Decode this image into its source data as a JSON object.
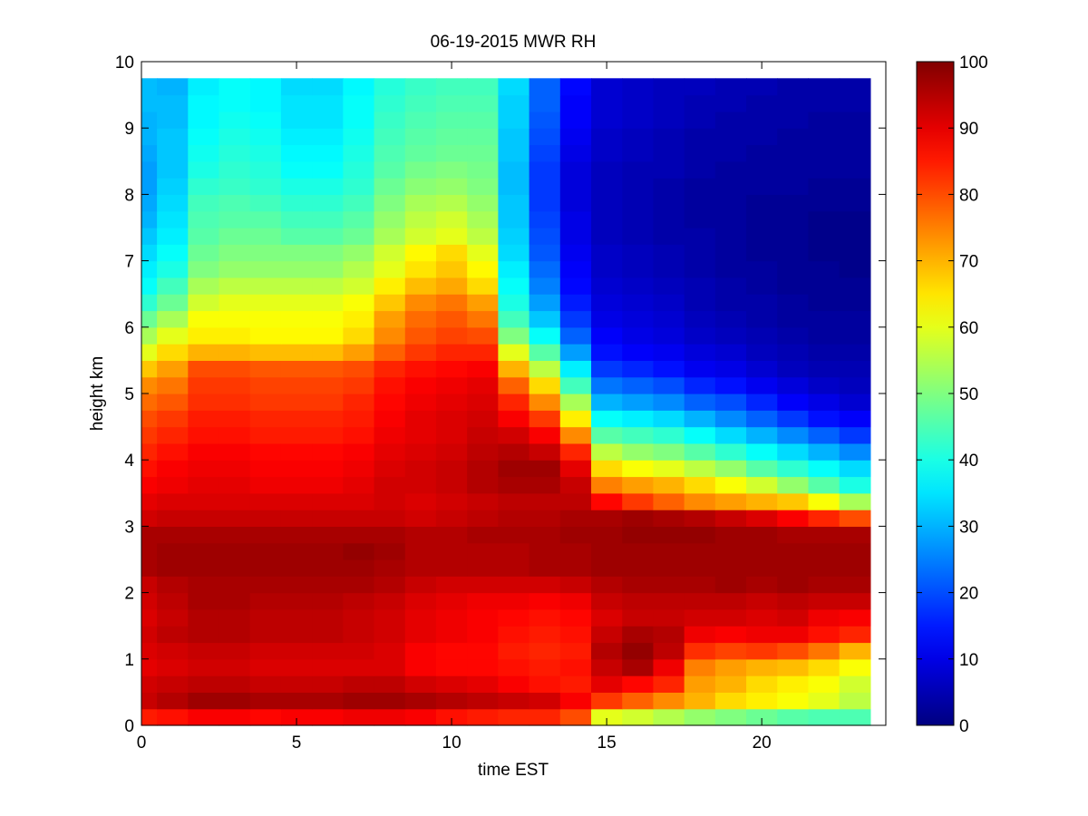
{
  "chart_data": {
    "type": "heatmap",
    "title": "06-19-2015 MWR RH",
    "xlabel": "time EST",
    "ylabel": "height km",
    "xlim": [
      0,
      24
    ],
    "ylim": [
      0,
      10
    ],
    "x_ticks": [
      0,
      5,
      10,
      15,
      20
    ],
    "y_ticks": [
      0,
      1,
      2,
      3,
      4,
      5,
      6,
      7,
      8,
      9,
      10
    ],
    "colormap": "jet",
    "colorbar": {
      "range": [
        0,
        100
      ],
      "ticks": [
        0,
        10,
        20,
        30,
        40,
        50,
        60,
        70,
        80,
        90,
        100
      ]
    },
    "grid": false,
    "x": [
      0,
      1,
      2,
      3,
      4,
      5,
      6,
      7,
      8,
      9,
      10,
      11,
      12,
      13,
      14,
      15,
      16,
      17,
      18,
      19,
      20,
      21,
      22,
      23
    ],
    "y": [
      0,
      0.25,
      0.5,
      0.75,
      1,
      1.25,
      1.5,
      1.75,
      2,
      2.25,
      2.5,
      2.75,
      3,
      3.25,
      3.5,
      3.75,
      4,
      4.25,
      4.5,
      4.75,
      5,
      5.25,
      5.5,
      5.75,
      6,
      6.25,
      6.5,
      6.75,
      7,
      7.25,
      7.5,
      7.75,
      8,
      8.25,
      8.5,
      8.75,
      9,
      9.25,
      9.5
    ],
    "values": [
      [
        85,
        86,
        88,
        88,
        87,
        88,
        88,
        89,
        89,
        88,
        86,
        85,
        84,
        84,
        80,
        60,
        58,
        55,
        52,
        50,
        48,
        46,
        45,
        45
      ],
      [
        93,
        95,
        97,
        97,
        96,
        96,
        96,
        97,
        97,
        96,
        95,
        94,
        93,
        92,
        88,
        82,
        78,
        74,
        70,
        66,
        64,
        62,
        60,
        56
      ],
      [
        92,
        93,
        94,
        94,
        93,
        93,
        93,
        94,
        94,
        92,
        91,
        90,
        88,
        86,
        85,
        90,
        87,
        84,
        72,
        70,
        66,
        64,
        62,
        58
      ],
      [
        90,
        91,
        92,
        92,
        91,
        91,
        91,
        91,
        91,
        88,
        87,
        87,
        86,
        85,
        86,
        93,
        96,
        89,
        75,
        72,
        70,
        69,
        66,
        62
      ],
      [
        91,
        92,
        93,
        93,
        92,
        92,
        92,
        92,
        91,
        88,
        87,
        87,
        85,
        84,
        85,
        95,
        98,
        94,
        83,
        81,
        82,
        80,
        76,
        70
      ],
      [
        92,
        94,
        95,
        95,
        94,
        94,
        94,
        93,
        92,
        90,
        89,
        88,
        86,
        85,
        86,
        93,
        96,
        95,
        89,
        88,
        89,
        89,
        86,
        84
      ],
      [
        91,
        93,
        95,
        95,
        94,
        94,
        94,
        93,
        92,
        90,
        89,
        88,
        87,
        86,
        87,
        91,
        93,
        93,
        92,
        92,
        91,
        92,
        89,
        88
      ],
      [
        92,
        94,
        96,
        96,
        95,
        95,
        95,
        94,
        93,
        91,
        90,
        89,
        89,
        88,
        89,
        93,
        94,
        94,
        94,
        94,
        93,
        94,
        93,
        93
      ],
      [
        93,
        95,
        96,
        96,
        96,
        96,
        96,
        96,
        95,
        93,
        92,
        92,
        92,
        92,
        93,
        95,
        96,
        96,
        96,
        97,
        96,
        97,
        96,
        96
      ],
      [
        96,
        97,
        97,
        97,
        97,
        97,
        97,
        97,
        96,
        95,
        95,
        95,
        95,
        96,
        96,
        97,
        97,
        97,
        97,
        97,
        97,
        97,
        97,
        97
      ],
      [
        96,
        97,
        97,
        97,
        97,
        97,
        97,
        98,
        97,
        95,
        95,
        95,
        95,
        96,
        96,
        97,
        97,
        97,
        97,
        97,
        97,
        97,
        97,
        97
      ],
      [
        96,
        96,
        96,
        96,
        96,
        96,
        96,
        96,
        96,
        95,
        95,
        96,
        96,
        96,
        97,
        97,
        98,
        98,
        98,
        97,
        97,
        96,
        96,
        96
      ],
      [
        92,
        93,
        93,
        93,
        93,
        93,
        93,
        93,
        93,
        92,
        93,
        94,
        95,
        95,
        96,
        96,
        97,
        96,
        95,
        93,
        91,
        88,
        84,
        80
      ],
      [
        90,
        91,
        91,
        91,
        91,
        91,
        91,
        91,
        92,
        91,
        92,
        93,
        94,
        94,
        94,
        87,
        82,
        78,
        74,
        72,
        70,
        68,
        62,
        54
      ],
      [
        88,
        89,
        90,
        90,
        89,
        89,
        89,
        90,
        92,
        92,
        93,
        95,
        96,
        96,
        93,
        75,
        72,
        70,
        66,
        62,
        58,
        52,
        46,
        40
      ],
      [
        86,
        88,
        89,
        89,
        88,
        88,
        88,
        89,
        91,
        92,
        93,
        95,
        97,
        97,
        90,
        66,
        62,
        60,
        56,
        52,
        46,
        42,
        38,
        34
      ],
      [
        84,
        86,
        88,
        88,
        87,
        87,
        87,
        88,
        90,
        91,
        92,
        94,
        95,
        93,
        84,
        56,
        52,
        50,
        46,
        42,
        38,
        34,
        30,
        26
      ],
      [
        82,
        84,
        86,
        86,
        85,
        85,
        85,
        86,
        89,
        90,
        91,
        93,
        92,
        88,
        74,
        46,
        44,
        42,
        38,
        34,
        30,
        26,
        22,
        18
      ],
      [
        80,
        82,
        85,
        85,
        84,
        84,
        84,
        85,
        88,
        90,
        91,
        92,
        88,
        82,
        64,
        38,
        36,
        34,
        30,
        26,
        22,
        18,
        14,
        12
      ],
      [
        77,
        79,
        83,
        83,
        82,
        82,
        82,
        84,
        87,
        89,
        90,
        91,
        84,
        74,
        54,
        30,
        28,
        26,
        22,
        20,
        16,
        12,
        10,
        8
      ],
      [
        74,
        76,
        82,
        82,
        81,
        81,
        81,
        82,
        86,
        88,
        89,
        90,
        78,
        66,
        44,
        24,
        22,
        20,
        16,
        14,
        11,
        9,
        7,
        6
      ],
      [
        68,
        72,
        80,
        80,
        79,
        79,
        79,
        80,
        84,
        86,
        87,
        88,
        70,
        56,
        36,
        18,
        16,
        14,
        11,
        10,
        8,
        6,
        5,
        5
      ],
      [
        60,
        66,
        70,
        70,
        69,
        69,
        69,
        72,
        78,
        82,
        84,
        84,
        60,
        46,
        28,
        14,
        12,
        11,
        9,
        8,
        6,
        5,
        4,
        4
      ],
      [
        54,
        60,
        64,
        64,
        63,
        63,
        63,
        66,
        74,
        79,
        81,
        80,
        50,
        38,
        22,
        12,
        10,
        9,
        7,
        6,
        5,
        4,
        3,
        3
      ],
      [
        48,
        54,
        62,
        62,
        62,
        62,
        62,
        64,
        72,
        77,
        79,
        76,
        44,
        32,
        18,
        10,
        9,
        8,
        6,
        5,
        4,
        3,
        3,
        3
      ],
      [
        42,
        48,
        58,
        60,
        60,
        60,
        60,
        62,
        68,
        74,
        76,
        72,
        40,
        28,
        15,
        9,
        8,
        7,
        5,
        4,
        4,
        3,
        2,
        2
      ],
      [
        38,
        44,
        54,
        56,
        56,
        56,
        56,
        58,
        64,
        69,
        71,
        66,
        38,
        25,
        13,
        8,
        7,
        6,
        5,
        4,
        3,
        2,
        2,
        2
      ],
      [
        36,
        40,
        50,
        52,
        52,
        52,
        52,
        55,
        60,
        65,
        68,
        63,
        36,
        23,
        12,
        7,
        6,
        5,
        4,
        3,
        3,
        2,
        2,
        1
      ],
      [
        34,
        38,
        48,
        50,
        50,
        50,
        50,
        52,
        58,
        63,
        66,
        60,
        34,
        21,
        11,
        7,
        6,
        5,
        4,
        3,
        2,
        2,
        1,
        1
      ],
      [
        32,
        36,
        46,
        48,
        48,
        46,
        46,
        48,
        54,
        58,
        60,
        56,
        33,
        20,
        10,
        6,
        5,
        4,
        4,
        3,
        2,
        2,
        1,
        1
      ],
      [
        30,
        35,
        45,
        46,
        46,
        44,
        44,
        46,
        52,
        56,
        58,
        54,
        32,
        19,
        10,
        6,
        5,
        4,
        3,
        3,
        2,
        2,
        1,
        1
      ],
      [
        29,
        34,
        44,
        45,
        44,
        42,
        42,
        44,
        50,
        54,
        55,
        52,
        32,
        18,
        9,
        6,
        5,
        4,
        3,
        3,
        2,
        2,
        2,
        2
      ],
      [
        28,
        33,
        42,
        43,
        42,
        40,
        40,
        42,
        48,
        51,
        52,
        50,
        31,
        18,
        9,
        6,
        5,
        4,
        3,
        3,
        3,
        3,
        2,
        2
      ],
      [
        28,
        32,
        40,
        42,
        41,
        38,
        38,
        41,
        46,
        49,
        50,
        49,
        31,
        18,
        9,
        6,
        5,
        5,
        4,
        3,
        3,
        3,
        3,
        3
      ],
      [
        29,
        32,
        39,
        41,
        40,
        37,
        37,
        40,
        45,
        47,
        48,
        48,
        32,
        19,
        10,
        7,
        6,
        5,
        4,
        4,
        3,
        3,
        3,
        3
      ],
      [
        30,
        32,
        38,
        40,
        39,
        36,
        36,
        39,
        44,
        46,
        47,
        47,
        32,
        20,
        11,
        7,
        6,
        5,
        4,
        4,
        4,
        3,
        3,
        3
      ],
      [
        30,
        31,
        37,
        39,
        38,
        35,
        35,
        38,
        43,
        45,
        46,
        46,
        33,
        21,
        12,
        8,
        7,
        6,
        5,
        4,
        4,
        4,
        3,
        3
      ],
      [
        31,
        31,
        37,
        38,
        37,
        35,
        35,
        38,
        42,
        44,
        45,
        45,
        33,
        22,
        12,
        8,
        7,
        6,
        5,
        5,
        4,
        4,
        4,
        4
      ],
      [
        31,
        30,
        36,
        38,
        37,
        34,
        34,
        37,
        41,
        43,
        44,
        44,
        34,
        22,
        13,
        8,
        7,
        6,
        6,
        5,
        5,
        4,
        4,
        4
      ]
    ]
  }
}
